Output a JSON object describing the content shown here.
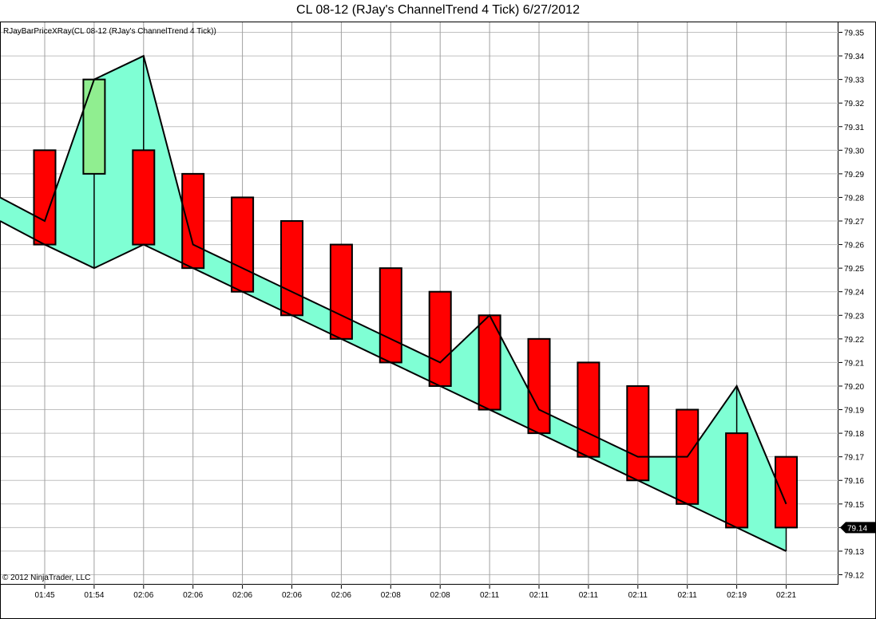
{
  "title": "CL 08-12 (RJay's ChannelTrend  4 Tick)  6/27/2012",
  "indicator_label": "RJayBarPriceXRay(CL 08-12 (RJay's ChannelTrend  4 Tick))",
  "copyright": "© 2012 NinjaTrader, LLC",
  "colors": {
    "background": "#ffffff",
    "grid": "#c0c0c0",
    "channel_fill": "#7fffd4",
    "down_bar": "#ff0000",
    "up_bar": "#90ee90",
    "outline": "#000000"
  },
  "chart_data": {
    "type": "bar",
    "title": "CL 08-12 (RJay's ChannelTrend  4 Tick)  6/27/2012",
    "xlabel": "",
    "ylabel": "",
    "ylim": [
      79.12,
      79.35
    ],
    "grid": true,
    "x": [
      "01:45",
      "01:54",
      "02:06",
      "02:06",
      "02:06",
      "02:06",
      "02:06",
      "02:08",
      "02:08",
      "02:11",
      "02:11",
      "02:11",
      "02:11",
      "02:11",
      "02:19",
      "02:21"
    ],
    "yticks": [
      79.12,
      79.13,
      79.14,
      79.15,
      79.16,
      79.17,
      79.18,
      79.19,
      79.2,
      79.21,
      79.22,
      79.23,
      79.24,
      79.25,
      79.26,
      79.27,
      79.28,
      79.29,
      79.3,
      79.31,
      79.32,
      79.33,
      79.34,
      79.35
    ],
    "bars": [
      {
        "open": 79.3,
        "close": 79.26,
        "direction": "down"
      },
      {
        "open": 79.29,
        "close": 79.33,
        "direction": "up"
      },
      {
        "open": 79.3,
        "close": 79.26,
        "direction": "down"
      },
      {
        "open": 79.29,
        "close": 79.25,
        "direction": "down"
      },
      {
        "open": 79.28,
        "close": 79.24,
        "direction": "down"
      },
      {
        "open": 79.27,
        "close": 79.23,
        "direction": "down"
      },
      {
        "open": 79.26,
        "close": 79.22,
        "direction": "down"
      },
      {
        "open": 79.25,
        "close": 79.21,
        "direction": "down"
      },
      {
        "open": 79.24,
        "close": 79.2,
        "direction": "down"
      },
      {
        "open": 79.23,
        "close": 79.19,
        "direction": "down"
      },
      {
        "open": 79.22,
        "close": 79.18,
        "direction": "down"
      },
      {
        "open": 79.21,
        "close": 79.17,
        "direction": "down"
      },
      {
        "open": 79.2,
        "close": 79.16,
        "direction": "down"
      },
      {
        "open": 79.19,
        "close": 79.15,
        "direction": "down"
      },
      {
        "open": 79.18,
        "close": 79.14,
        "direction": "down"
      },
      {
        "open": 79.17,
        "close": 79.14,
        "direction": "down"
      }
    ],
    "upper_line": [
      79.27,
      79.33,
      79.34,
      79.26,
      79.25,
      79.24,
      79.23,
      79.22,
      79.21,
      79.23,
      79.19,
      79.18,
      79.17,
      79.17,
      79.2,
      79.15
    ],
    "lower_line": [
      79.26,
      79.25,
      79.26,
      79.25,
      79.24,
      79.23,
      79.22,
      79.21,
      79.2,
      79.19,
      79.18,
      79.17,
      79.16,
      79.15,
      79.14,
      79.13
    ],
    "band_start": {
      "upper": 79.28,
      "lower": 79.27
    },
    "last_price": "79.14"
  }
}
